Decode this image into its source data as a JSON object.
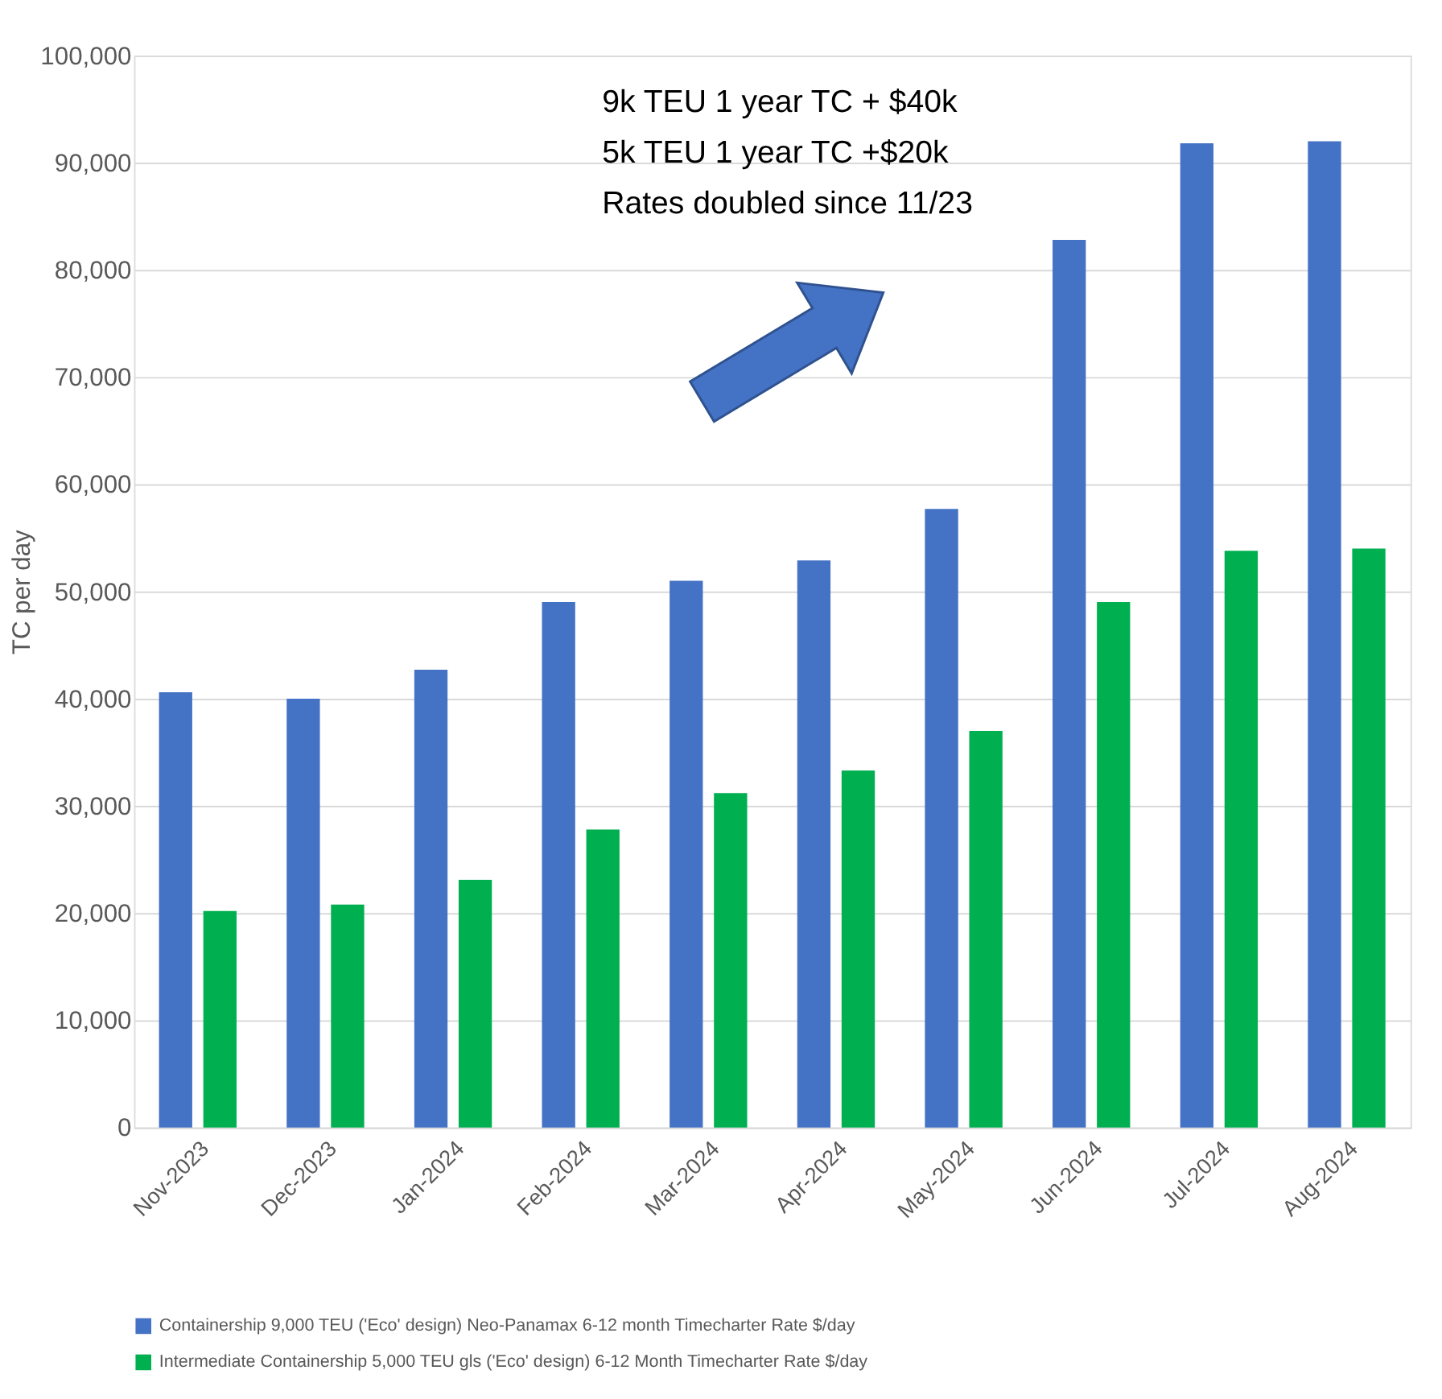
{
  "chart_data": {
    "type": "bar",
    "ylabel": "TC per day",
    "categories": [
      "Nov-2023",
      "Dec-2023",
      "Jan-2024",
      "Feb-2024",
      "Mar-2024",
      "Apr-2024",
      "May-2024",
      "Jun-2024",
      "Jul-2024",
      "Aug-2024"
    ],
    "series": [
      {
        "name": "Containership 9,000 TEU ('Eco' design) Neo-Panamax 6-12 month Timecharter Rate $/day",
        "color": "#4472c4",
        "values": [
          40600,
          40000,
          42700,
          49000,
          51000,
          52900,
          57700,
          82800,
          91800,
          92000
        ]
      },
      {
        "name": "Intermediate Containership 5,000 TEU gls ('Eco' design) 6-12 Month Timecharter Rate $/day",
        "color": "#00b050",
        "values": [
          20200,
          20800,
          23100,
          27800,
          31200,
          33300,
          37000,
          49000,
          53800,
          54000
        ]
      }
    ],
    "ylim": [
      0,
      100000
    ],
    "yticks": [
      0,
      {
        "value": 10000,
        "label": "10,000"
      },
      {
        "value": 20000,
        "label": "20,000"
      },
      {
        "value": 30000,
        "label": "30,000"
      },
      {
        "value": 40000,
        "label": "40,000"
      },
      {
        "value": 50000,
        "label": "50,000"
      },
      {
        "value": 60000,
        "label": "60,000"
      },
      {
        "value": 70000,
        "label": "70,000"
      },
      {
        "value": 80000,
        "label": "80,000"
      },
      {
        "value": 90000,
        "label": "90,000"
      },
      {
        "value": 100000,
        "label": "100,000"
      }
    ],
    "grid": "y",
    "legend": "bottom",
    "annotations": [
      "9k TEU 1 year TC + $40k",
      "5k TEU 1 year TC +$20k",
      "Rates doubled since 11/23"
    ]
  }
}
